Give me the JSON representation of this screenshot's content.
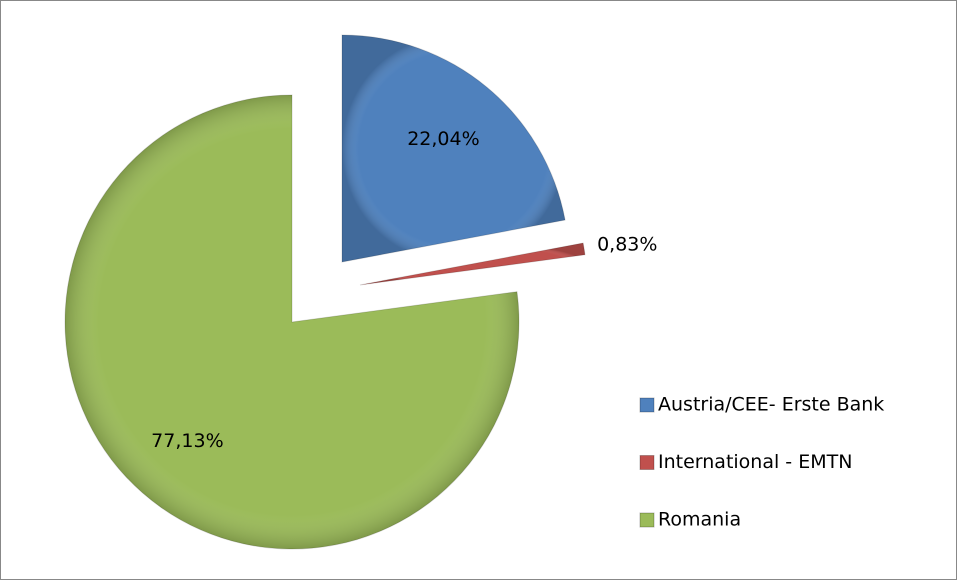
{
  "chart_data": {
    "type": "pie",
    "categories": [
      "Austria/CEE- Erste Bank",
      "International - EMTN",
      "Romania"
    ],
    "values": [
      22.04,
      0.83,
      77.13
    ],
    "value_labels": [
      "22,04%",
      "0,83%",
      "77,13%"
    ],
    "colors": [
      "#4f81bd",
      "#c0504d",
      "#9bbb59"
    ],
    "legend": "right"
  }
}
